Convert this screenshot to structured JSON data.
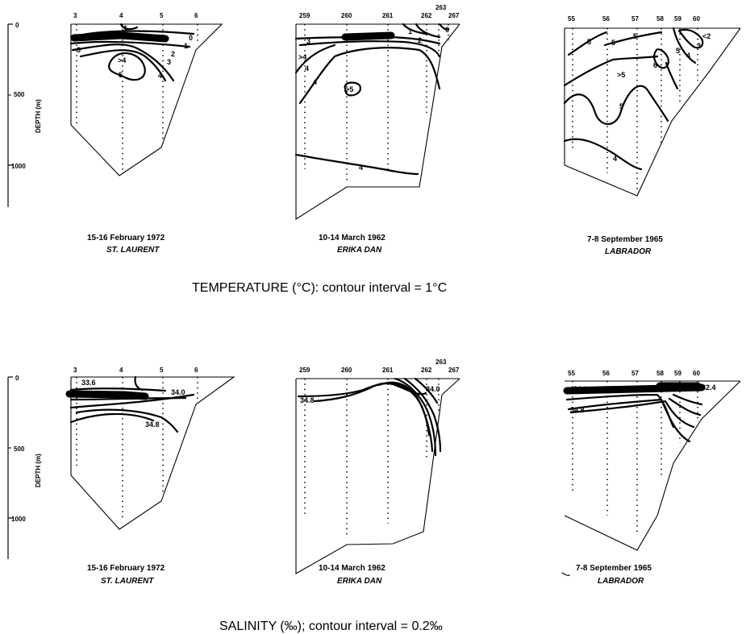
{
  "panels": {
    "temperature": {
      "caption": "TEMPERATURE  (°C):  contour interval = 1°C",
      "axis": {
        "label": "DEPTH (m)",
        "ticks": [
          "0",
          "500",
          "1000"
        ]
      },
      "sections": [
        {
          "stations": [
            "3",
            "4",
            "5",
            "6"
          ],
          "date": "15-16 February 1972",
          "ship": "ST. LAURENT",
          "labels": [
            "1",
            "0",
            "1",
            "2",
            "3",
            "4",
            "3",
            ">4",
            "5"
          ]
        },
        {
          "stations": [
            "259",
            "260",
            "261",
            "262",
            "263",
            "267"
          ],
          "date": "10-14 March 1962",
          "ship": "ERIKA DAN",
          "labels": [
            "3",
            "1",
            "2",
            "0",
            ">4",
            "4",
            "4",
            ">5",
            "4"
          ]
        },
        {
          "stations": [
            "55",
            "56",
            "57",
            "58",
            "59",
            "60"
          ],
          "date": "7-8 September 1965",
          "ship": "LABRADOR",
          "labels": [
            "5",
            "5",
            "5",
            "6",
            "5",
            "<2",
            "3",
            "4",
            ">5",
            "5",
            "4"
          ]
        }
      ]
    },
    "salinity": {
      "caption": "SALINITY  (‰);  contour interval = 0.2‰",
      "axis": {
        "label": "DEPTH (m)",
        "ticks": [
          "0",
          "500",
          "1000"
        ]
      },
      "sections": [
        {
          "stations": [
            "3",
            "4",
            "5",
            "6"
          ],
          "date": "15-16 February 1972",
          "ship": "ST. LAURENT",
          "labels": [
            "33.6",
            "34.0",
            "34.8"
          ]
        },
        {
          "stations": [
            "259",
            "260",
            "261",
            "262",
            "263",
            "267"
          ],
          "date": "10-14 March 1962",
          "ship": "ERIKA DAN",
          "labels": [
            "34.8",
            "34.0"
          ]
        },
        {
          "stations": [
            "55",
            "56",
            "57",
            "58",
            "59",
            "60"
          ],
          "date": "7-8 September 1965",
          "ship": "LABRADOR",
          "labels": [
            "34.0",
            "34.8",
            "32.4"
          ]
        }
      ]
    }
  }
}
